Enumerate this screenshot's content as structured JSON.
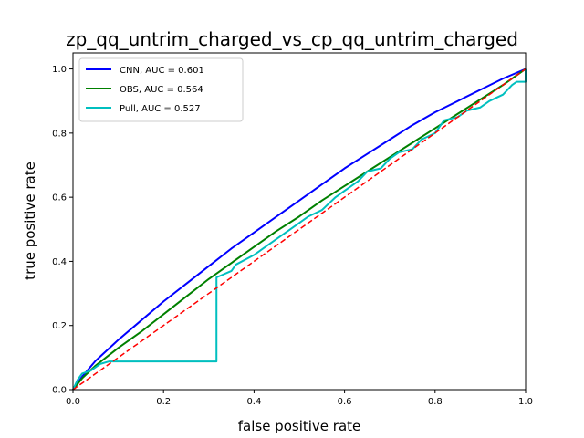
{
  "chart_data": {
    "type": "line",
    "title": "zp_qq_untrim_charged_vs_cp_qq_untrim_charged",
    "xlabel": "false positive rate",
    "ylabel": "true positive rate",
    "xlim": [
      0,
      1
    ],
    "ylim": [
      0,
      1.05
    ],
    "xticks": [
      "0.0",
      "0.2",
      "0.4",
      "0.6",
      "0.8",
      "1.0"
    ],
    "yticks": [
      "0.0",
      "0.2",
      "0.4",
      "0.6",
      "0.8",
      "1.0"
    ],
    "grid": false,
    "legend_position": "top-left",
    "series": [
      {
        "name": "CNN, AUC = 0.601",
        "color": "#0000ff",
        "style": "solid",
        "points": [
          [
            0,
            0
          ],
          [
            0.02,
            0.04
          ],
          [
            0.05,
            0.09
          ],
          [
            0.1,
            0.155
          ],
          [
            0.15,
            0.215
          ],
          [
            0.2,
            0.275
          ],
          [
            0.25,
            0.33
          ],
          [
            0.3,
            0.385
          ],
          [
            0.35,
            0.44
          ],
          [
            0.4,
            0.49
          ],
          [
            0.45,
            0.54
          ],
          [
            0.5,
            0.59
          ],
          [
            0.55,
            0.64
          ],
          [
            0.6,
            0.69
          ],
          [
            0.65,
            0.735
          ],
          [
            0.7,
            0.78
          ],
          [
            0.75,
            0.825
          ],
          [
            0.8,
            0.865
          ],
          [
            0.85,
            0.9
          ],
          [
            0.9,
            0.935
          ],
          [
            0.95,
            0.97
          ],
          [
            1,
            1
          ]
        ]
      },
      {
        "name": "OBS, AUC = 0.564",
        "color": "#008000",
        "style": "solid",
        "points": [
          [
            0,
            0
          ],
          [
            0.02,
            0.035
          ],
          [
            0.05,
            0.075
          ],
          [
            0.1,
            0.13
          ],
          [
            0.15,
            0.18
          ],
          [
            0.2,
            0.235
          ],
          [
            0.25,
            0.29
          ],
          [
            0.3,
            0.345
          ],
          [
            0.35,
            0.395
          ],
          [
            0.4,
            0.445
          ],
          [
            0.45,
            0.495
          ],
          [
            0.5,
            0.54
          ],
          [
            0.55,
            0.59
          ],
          [
            0.6,
            0.635
          ],
          [
            0.65,
            0.68
          ],
          [
            0.7,
            0.725
          ],
          [
            0.75,
            0.77
          ],
          [
            0.8,
            0.815
          ],
          [
            0.85,
            0.86
          ],
          [
            0.9,
            0.905
          ],
          [
            0.95,
            0.95
          ],
          [
            1,
            1
          ]
        ]
      },
      {
        "name": "Pull, AUC = 0.527",
        "color": "#00bfbf",
        "style": "solid",
        "points": [
          [
            0,
            0
          ],
          [
            0.01,
            0.03
          ],
          [
            0.02,
            0.05
          ],
          [
            0.04,
            0.06
          ],
          [
            0.06,
            0.08
          ],
          [
            0.08,
            0.088
          ],
          [
            0.317,
            0.088
          ],
          [
            0.317,
            0.35
          ],
          [
            0.35,
            0.37
          ],
          [
            0.36,
            0.39
          ],
          [
            0.4,
            0.42
          ],
          [
            0.42,
            0.44
          ],
          [
            0.45,
            0.47
          ],
          [
            0.48,
            0.5
          ],
          [
            0.5,
            0.52
          ],
          [
            0.52,
            0.54
          ],
          [
            0.55,
            0.56
          ],
          [
            0.58,
            0.6
          ],
          [
            0.6,
            0.62
          ],
          [
            0.63,
            0.65
          ],
          [
            0.65,
            0.68
          ],
          [
            0.68,
            0.69
          ],
          [
            0.7,
            0.72
          ],
          [
            0.72,
            0.74
          ],
          [
            0.75,
            0.75
          ],
          [
            0.77,
            0.78
          ],
          [
            0.8,
            0.8
          ],
          [
            0.82,
            0.84
          ],
          [
            0.85,
            0.85
          ],
          [
            0.87,
            0.87
          ],
          [
            0.9,
            0.88
          ],
          [
            0.92,
            0.9
          ],
          [
            0.95,
            0.92
          ],
          [
            0.97,
            0.95
          ],
          [
            0.98,
            0.96
          ],
          [
            1,
            0.96
          ],
          [
            1,
            1
          ]
        ]
      },
      {
        "name": "",
        "color": "#ff0000",
        "style": "dashed",
        "points": [
          [
            0,
            0
          ],
          [
            1,
            1
          ]
        ]
      }
    ]
  }
}
